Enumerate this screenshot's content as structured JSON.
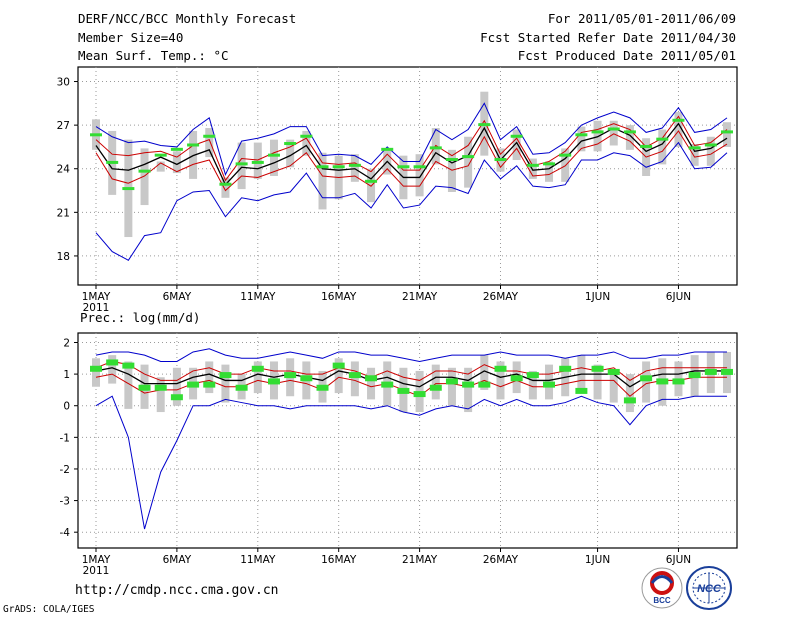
{
  "header": {
    "title": "DERF/NCC/BCC Monthly Forecast",
    "member_size": "Member Size=40",
    "variable": "Mean Surf. Temp.: °C",
    "period": "For 2011/05/01-2011/06/09",
    "start_date": "Fcst Started Refer Date 2011/04/30",
    "produced_date": "Fcst Produced Date 2011/05/01"
  },
  "precip_label": "Prec.: log(mm/d)",
  "footer": {
    "url": "http://cmdp.ncc.cma.gov.cn",
    "credit": "GrADS: COLA/IGES"
  },
  "logos": {
    "bcc": "BCC",
    "ncc": "NCC"
  },
  "colors": {
    "envelope": "#0000cc",
    "spread": "#cc0000",
    "ensemble_mean": "#000000",
    "box": "#c8c8c8",
    "marker": "#33dd33",
    "grid": "#9a9a9a"
  },
  "chart_data": [
    {
      "type": "box-timeseries",
      "title": "Mean Surf. Temp.: °C",
      "x_tick_labels": [
        "1MAY",
        "6MAY",
        "11MAY",
        "16MAY",
        "21MAY",
        "26MAY",
        "1JUN",
        "6JUN"
      ],
      "x_tick_days": [
        1,
        6,
        11,
        16,
        21,
        26,
        32,
        37
      ],
      "year_label": "2011",
      "y_ticks": [
        18,
        21,
        24,
        27,
        30
      ],
      "ylim": [
        16,
        31
      ],
      "days": [
        1,
        2,
        3,
        4,
        5,
        6,
        7,
        8,
        9,
        10,
        11,
        12,
        13,
        14,
        15,
        16,
        17,
        18,
        19,
        20,
        21,
        22,
        23,
        24,
        25,
        26,
        27,
        28,
        29,
        30,
        31,
        32,
        33,
        34,
        35,
        36,
        37,
        38,
        39,
        40
      ],
      "series": [
        {
          "name": "max",
          "values": [
            26.9,
            26.2,
            25.8,
            25.9,
            25.6,
            25.5,
            26.7,
            27.5,
            23.6,
            25.9,
            26.1,
            26.4,
            26.9,
            26.9,
            24.9,
            25.0,
            24.9,
            24.3,
            25.5,
            24.5,
            24.5,
            26.7,
            26.0,
            26.7,
            28.5,
            26.0,
            26.9,
            25.0,
            25.1,
            25.8,
            27.0,
            27.5,
            27.9,
            27.5,
            26.5,
            26.8,
            28.2,
            26.5,
            26.7,
            27.5
          ]
        },
        {
          "name": "upper",
          "values": [
            26.0,
            25.0,
            24.9,
            25.1,
            25.2,
            24.8,
            25.6,
            26.0,
            23.2,
            24.7,
            24.6,
            25.1,
            25.5,
            26.1,
            24.4,
            24.3,
            24.4,
            23.8,
            25.0,
            23.9,
            23.9,
            25.6,
            24.9,
            25.6,
            27.3,
            25.0,
            26.1,
            24.2,
            24.5,
            25.2,
            26.5,
            26.7,
            27.1,
            26.7,
            25.5,
            26.1,
            27.6,
            25.6,
            25.8,
            26.7
          ]
        },
        {
          "name": "mean",
          "values": [
            25.6,
            24.0,
            23.9,
            24.3,
            24.8,
            24.3,
            24.9,
            25.3,
            22.9,
            24.1,
            24.0,
            24.4,
            24.9,
            25.6,
            24.0,
            23.9,
            24.0,
            23.3,
            24.5,
            23.4,
            23.4,
            25.1,
            24.4,
            24.9,
            26.8,
            24.6,
            25.8,
            23.9,
            24.0,
            24.7,
            25.9,
            26.2,
            26.8,
            26.3,
            25.2,
            25.7,
            27.1,
            25.2,
            25.4,
            26.1
          ]
        },
        {
          "name": "lower",
          "values": [
            25.1,
            23.3,
            23.0,
            23.5,
            24.4,
            23.8,
            24.3,
            24.6,
            22.5,
            23.5,
            23.4,
            23.8,
            24.2,
            25.1,
            23.5,
            23.4,
            23.5,
            22.8,
            24.0,
            22.8,
            22.8,
            24.5,
            23.9,
            24.2,
            26.2,
            24.1,
            25.4,
            23.5,
            23.6,
            24.2,
            25.4,
            25.7,
            26.4,
            25.9,
            24.8,
            25.2,
            26.6,
            24.8,
            25.0,
            25.7
          ]
        },
        {
          "name": "min",
          "values": [
            19.6,
            18.3,
            17.7,
            19.4,
            19.6,
            21.8,
            22.4,
            22.5,
            20.7,
            22.0,
            21.8,
            22.2,
            22.4,
            23.7,
            22.0,
            22.0,
            22.3,
            21.3,
            22.9,
            21.3,
            21.5,
            22.8,
            22.7,
            22.3,
            24.6,
            23.3,
            24.2,
            22.8,
            22.7,
            22.9,
            24.6,
            24.6,
            25.1,
            24.9,
            24.1,
            24.5,
            25.8,
            24.0,
            24.1,
            25.1
          ]
        },
        {
          "name": "box_high",
          "values": [
            27.4,
            26.6,
            26.0,
            25.4,
            24.5,
            25.2,
            26.6,
            26.8,
            23.4,
            25.8,
            25.8,
            26.0,
            26.0,
            26.6,
            25.1,
            24.9,
            25.0,
            24.0,
            25.4,
            24.9,
            25.0,
            26.8,
            25.3,
            26.2,
            29.3,
            25.4,
            26.7,
            24.7,
            24.5,
            25.4,
            26.9,
            27.3,
            27.3,
            27.0,
            26.1,
            26.7,
            27.9,
            25.7,
            26.2,
            27.2
          ]
        },
        {
          "name": "box_low",
          "values": [
            25.3,
            22.2,
            19.3,
            21.5,
            23.8,
            23.7,
            23.3,
            24.8,
            22.0,
            22.6,
            23.3,
            23.5,
            24.1,
            24.9,
            21.2,
            21.9,
            23.1,
            21.7,
            23.6,
            21.9,
            22.1,
            24.3,
            22.4,
            22.7,
            24.9,
            23.8,
            24.6,
            23.3,
            23.1,
            23.1,
            25.2,
            25.2,
            25.6,
            25.3,
            23.5,
            24.3,
            25.5,
            24.2,
            24.2,
            25.5
          ]
        },
        {
          "name": "marker",
          "values": [
            26.3,
            24.4,
            22.6,
            23.8,
            24.9,
            25.3,
            25.6,
            26.2,
            22.9,
            24.3,
            24.4,
            24.9,
            25.7,
            26.2,
            24.1,
            24.1,
            24.2,
            23.1,
            25.3,
            24.1,
            24.1,
            25.4,
            24.6,
            24.8,
            27.0,
            24.6,
            26.2,
            24.2,
            24.3,
            24.9,
            26.3,
            26.5,
            26.7,
            26.5,
            25.5,
            26.0,
            27.3,
            25.4,
            25.6,
            26.5
          ]
        }
      ]
    },
    {
      "type": "box-timeseries",
      "title": "Prec.: log(mm/d)",
      "x_tick_labels": [
        "1MAY",
        "6MAY",
        "11MAY",
        "16MAY",
        "21MAY",
        "26MAY",
        "1JUN",
        "6JUN"
      ],
      "x_tick_days": [
        1,
        6,
        11,
        16,
        21,
        26,
        32,
        37
      ],
      "year_label": "2011",
      "y_ticks": [
        -4,
        -3,
        -2,
        -1,
        0,
        1,
        2
      ],
      "ylim": [
        -4.5,
        2.3
      ],
      "days": [
        1,
        2,
        3,
        4,
        5,
        6,
        7,
        8,
        9,
        10,
        11,
        12,
        13,
        14,
        15,
        16,
        17,
        18,
        19,
        20,
        21,
        22,
        23,
        24,
        25,
        26,
        27,
        28,
        29,
        30,
        31,
        32,
        33,
        34,
        35,
        36,
        37,
        38,
        39,
        40
      ],
      "series": [
        {
          "name": "max",
          "values": [
            1.6,
            1.7,
            1.7,
            1.6,
            1.4,
            1.4,
            1.7,
            1.8,
            1.6,
            1.5,
            1.5,
            1.6,
            1.7,
            1.6,
            1.5,
            1.7,
            1.7,
            1.6,
            1.6,
            1.5,
            1.4,
            1.5,
            1.6,
            1.6,
            1.6,
            1.7,
            1.6,
            1.6,
            1.6,
            1.5,
            1.6,
            1.6,
            1.7,
            1.5,
            1.5,
            1.6,
            1.6,
            1.7,
            1.7,
            1.7
          ]
        },
        {
          "name": "upper",
          "values": [
            1.2,
            1.4,
            1.3,
            1.0,
            0.8,
            0.8,
            1.1,
            1.2,
            1.0,
            1.0,
            1.2,
            1.1,
            1.1,
            1.0,
            1.0,
            1.2,
            1.1,
            0.9,
            1.1,
            0.9,
            0.8,
            1.1,
            1.1,
            1.0,
            1.3,
            1.1,
            1.1,
            1.0,
            1.0,
            1.1,
            1.2,
            1.1,
            1.2,
            0.8,
            1.1,
            1.2,
            1.2,
            1.2,
            1.2,
            1.2
          ]
        },
        {
          "name": "mean",
          "values": [
            1.1,
            1.2,
            1.0,
            0.7,
            0.7,
            0.7,
            0.9,
            1.0,
            0.8,
            0.8,
            1.0,
            0.9,
            1.0,
            0.9,
            0.8,
            1.1,
            1.0,
            0.8,
            0.9,
            0.7,
            0.6,
            0.9,
            0.9,
            0.8,
            1.1,
            0.9,
            1.0,
            0.8,
            0.8,
            0.9,
            1.0,
            1.0,
            1.0,
            0.6,
            0.9,
            1.0,
            1.0,
            1.1,
            1.1,
            1.1
          ]
        },
        {
          "name": "lower",
          "values": [
            0.9,
            1.0,
            0.7,
            0.4,
            0.5,
            0.5,
            0.7,
            0.8,
            0.6,
            0.6,
            0.8,
            0.7,
            0.8,
            0.7,
            0.5,
            0.9,
            0.8,
            0.6,
            0.7,
            0.5,
            0.3,
            0.7,
            0.7,
            0.6,
            0.8,
            0.6,
            0.8,
            0.6,
            0.6,
            0.7,
            0.8,
            0.8,
            0.8,
            0.3,
            0.7,
            0.8,
            0.8,
            0.9,
            0.9,
            0.9
          ]
        },
        {
          "name": "min",
          "values": [
            0.0,
            0.3,
            -1.0,
            -3.9,
            -2.1,
            -1.1,
            0.0,
            0.0,
            0.2,
            0.1,
            0.0,
            0.0,
            -0.1,
            0.0,
            0.0,
            0.0,
            0.0,
            -0.1,
            0.0,
            -0.2,
            -0.3,
            -0.1,
            0.0,
            -0.1,
            0.2,
            0.0,
            0.2,
            0.0,
            0.0,
            0.1,
            0.3,
            0.1,
            0.0,
            -0.6,
            0.0,
            0.2,
            0.2,
            0.3,
            0.3,
            0.3
          ]
        },
        {
          "name": "box_high",
          "values": [
            1.5,
            1.6,
            1.4,
            1.3,
            0.9,
            1.2,
            1.2,
            1.4,
            1.3,
            1.0,
            1.4,
            1.4,
            1.5,
            1.4,
            1.1,
            1.5,
            1.4,
            1.2,
            1.4,
            1.2,
            1.1,
            1.3,
            1.2,
            1.2,
            1.6,
            1.4,
            1.4,
            1.1,
            1.3,
            1.5,
            1.6,
            1.3,
            1.1,
            1.0,
            1.4,
            1.5,
            1.4,
            1.6,
            1.7,
            1.7
          ]
        },
        {
          "name": "box_low",
          "values": [
            0.6,
            0.7,
            -0.1,
            -0.1,
            -0.2,
            0.0,
            0.2,
            0.4,
            0.1,
            0.2,
            0.4,
            0.2,
            0.3,
            0.2,
            0.1,
            0.4,
            0.3,
            0.2,
            0.0,
            -0.2,
            -0.2,
            0.2,
            0.0,
            -0.2,
            0.5,
            0.2,
            0.4,
            0.2,
            0.2,
            0.3,
            0.4,
            0.2,
            0.1,
            -0.2,
            0.1,
            0.0,
            0.3,
            0.3,
            0.4,
            0.4
          ]
        },
        {
          "name": "marker",
          "values": [
            1.2,
            1.4,
            1.3,
            0.6,
            0.6,
            0.3,
            0.7,
            0.7,
            1.0,
            0.6,
            1.2,
            0.8,
            1.0,
            0.9,
            0.6,
            1.3,
            1.0,
            0.9,
            0.7,
            0.5,
            0.4,
            0.6,
            0.8,
            0.7,
            0.7,
            1.2,
            0.9,
            1.0,
            0.7,
            1.2,
            0.5,
            1.2,
            1.1,
            0.2,
            0.9,
            0.8,
            0.8,
            1.0,
            1.1,
            1.1
          ]
        }
      ]
    }
  ]
}
